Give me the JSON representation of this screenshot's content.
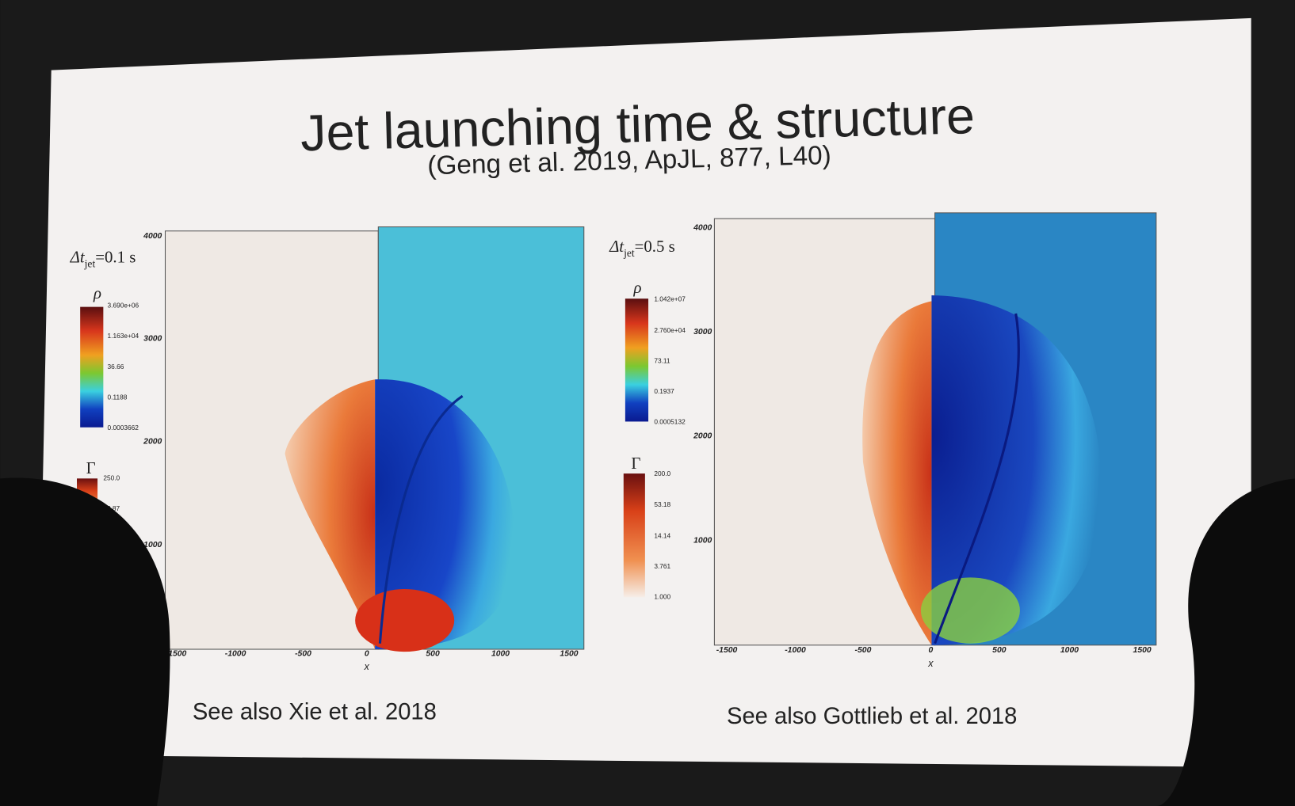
{
  "title": "Jet launching time & structure",
  "subtitle": "(Geng et al. 2019, ApJL, 877, L40)",
  "panels": [
    {
      "label_main": "Δt",
      "label_sub": "jet",
      "label_value": "=0.1 s",
      "rho_symbol": "ρ",
      "rho_ticks": [
        "3.690e+06",
        "1.163e+04",
        "36.66",
        "0.1188",
        "0.0003662"
      ],
      "gamma_symbol": "Γ",
      "gamma_ticks": [
        "250.0",
        "62.87"
      ],
      "y_ticks": [
        "4000",
        "3000",
        "2000",
        "1000"
      ],
      "x_ticks": [
        "-1500",
        "-1000",
        "-500",
        "0",
        "500",
        "1000",
        "1500"
      ],
      "x_label": "x",
      "caption": "See also Xie et al. 2018"
    },
    {
      "label_main": "Δt",
      "label_sub": "jet",
      "label_value": "=0.5 s",
      "rho_symbol": "ρ",
      "rho_ticks": [
        "1.042e+07",
        "2.760e+04",
        "73.11",
        "0.1937",
        "0.0005132"
      ],
      "gamma_symbol": "Γ",
      "gamma_ticks": [
        "200.0",
        "53.18",
        "14.14",
        "3.761",
        "1.000"
      ],
      "y_ticks": [
        "4000",
        "3000",
        "2000",
        "1000"
      ],
      "x_ticks": [
        "-1500",
        "-1000",
        "-500",
        "0",
        "500",
        "1000",
        "1500"
      ],
      "x_label": "x",
      "caption": "See also Gottlieb et al. 2018"
    }
  ]
}
